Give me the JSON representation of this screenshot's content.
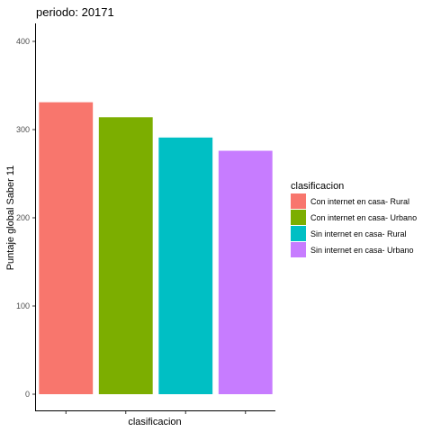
{
  "chart_data": {
    "type": "bar",
    "title": "periodo: 20171",
    "xlabel": "clasificacion",
    "ylabel": "Puntaje global Saber 11",
    "ylim": [
      0,
      420
    ],
    "yticks": [
      0,
      100,
      200,
      300,
      400
    ],
    "categories": [
      "Con internet en casa- Rural",
      "Con internet en casa- Urbano",
      "Sin internet en casa- Rural",
      "Sin internet en casa- Urbano"
    ],
    "values": [
      331,
      314,
      291,
      276
    ],
    "colors": [
      "#F8766D",
      "#7CAE00",
      "#00BFC4",
      "#C77CFF"
    ],
    "legend": {
      "title": "clasificacion",
      "position": "right"
    },
    "grid": false
  }
}
